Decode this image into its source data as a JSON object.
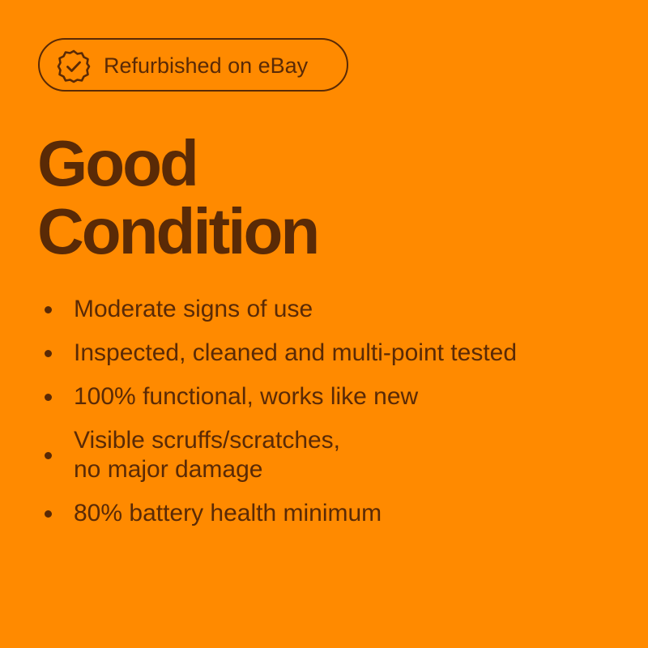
{
  "badge": {
    "label": "Refurbished on eBay",
    "icon": "verified-badge-check-icon"
  },
  "title": {
    "line1": "Good",
    "line2": "Condition"
  },
  "features": [
    {
      "lines": [
        "Moderate signs of use"
      ]
    },
    {
      "lines": [
        "Inspected, cleaned and multi-point tested"
      ]
    },
    {
      "lines": [
        "100% functional, works like new"
      ]
    },
    {
      "lines": [
        "Visible scruffs/scratches,",
        "no major damage"
      ]
    },
    {
      "lines": [
        "80% battery health minimum"
      ]
    }
  ],
  "colors": {
    "background": "#FF8A00",
    "text": "#5A2A06"
  }
}
